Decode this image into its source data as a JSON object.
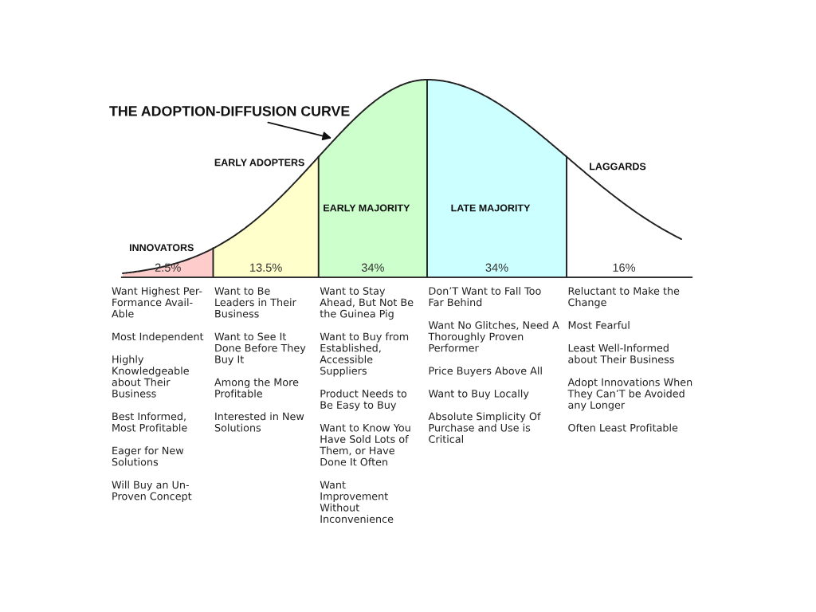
{
  "chart_data": {
    "type": "other",
    "title": "THE ADOPTION-DIFFUSION CURVE",
    "categories": [
      "INNOVATORS",
      "EARLY ADOPTERS",
      "EARLY MAJORITY",
      "LATE MAJORITY",
      "LAGGARDS"
    ],
    "values": [
      2.5,
      13.5,
      34,
      34,
      16
    ],
    "colors": [
      "#ffcccc",
      "#ffffcc",
      "#ccffcc",
      "#ccffff",
      "#ffffff"
    ],
    "value_labels": [
      "2.5%",
      "13.5%",
      "34%",
      "34%",
      "16%"
    ],
    "annotations": [
      "Want Highest Per-\nFormance Avail-\nAble\n\nMost Independent\n\nHighly\nKnowledgeable\nabout Their\nBusiness\n\nBest Informed,\nMost Profitable\n\nEager for New\nSolutions\n\nWill Buy an Un-\nProven Concept",
      "Want to Be\nLeaders in Their\nBusiness\n\nWant to See It\nDone Before They\nBuy It\n\nAmong the More\nProfitable\n\nInterested in New\nSolutions",
      "Want to Stay\nAhead, But Not Be\nthe Guinea Pig\n\nWant to Buy from\nEstablished,\nAccessible\nSuppliers\n\nProduct Needs to\nBe Easy to Buy\n\nWant to Know You\nHave Sold Lots of\nThem, or Have\nDone It Often\n\nWant\nImprovement\nWithout\nInconvenience",
      "Don’T Want to Fall Too\nFar Behind\n\nWant No Glitches, Need A\nThoroughly Proven\nPerformer\n\nPrice Buyers Above All\n\nWant to Buy Locally\n\nAbsolute Simplicity Of\nPurchase and Use is\nCritical",
      "Reluctant to Make the\nChange\n\nMost Fearful\n\nLeast Well-Informed\nabout Their Business\n\nAdopt Innovations When\nThey Can’T be Avoided\nany Longer\n\nOften Least Profitable"
    ]
  }
}
